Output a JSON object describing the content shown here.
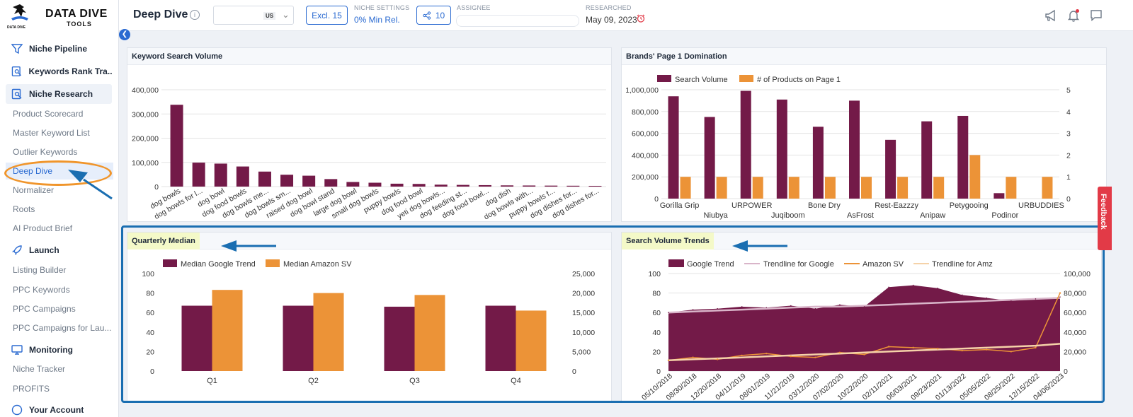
{
  "logo": {
    "brand": "DATA DIVE",
    "sub": "TOOLS",
    "tiny": "DATA DIVE"
  },
  "sidebar": {
    "groups": [
      {
        "label": "Niche Pipeline",
        "icon": "funnel-icon"
      },
      {
        "label": "Keywords Rank Tra...",
        "icon": "search-doc-icon"
      },
      {
        "label": "Niche Research",
        "icon": "search-doc-icon"
      },
      {
        "label": "Launch",
        "icon": "rocket-icon"
      },
      {
        "label": "Monitoring",
        "icon": "monitor-icon"
      },
      {
        "label": "Your Account",
        "icon": "user-icon"
      }
    ],
    "research_items": [
      "Product Scorecard",
      "Master Keyword List",
      "Outlier Keywords",
      "Deep Dive",
      "Normalizer",
      "Roots",
      "AI Product Brief"
    ],
    "launch_items": [
      "Listing Builder",
      "PPC Keywords",
      "PPC Campaigns",
      "PPC Campaigns for Lau..."
    ],
    "monitoring_items": [
      "Niche Tracker",
      "PROFITS"
    ]
  },
  "header": {
    "title": "Deep Dive",
    "marketplace": "US",
    "excl_label": "Excl. 15",
    "niche_settings_caption": "NICHE SETTINGS",
    "niche_settings_value": "0% Min Rel.",
    "share_count": "10",
    "assignee_caption": "ASSIGNEE",
    "researched_caption": "RESEARCHED",
    "researched_date": "May 09, 2023"
  },
  "feedback_label": "Feedback",
  "colors": {
    "maroon": "#731a48",
    "orange": "#ec9337",
    "blue": "#2a6ad1",
    "highlight": "#f4f9c8",
    "frame": "#1a6eb1"
  },
  "chart_data": [
    {
      "id": "keyword-search-volume",
      "type": "bar",
      "title": "Keyword Search Volume",
      "categories": [
        "dog bowls",
        "dog bowls for l...",
        "dog bowl",
        "dog food bowls",
        "dog bowls me...",
        "dog bowls sm...",
        "raised dog bowl",
        "dog bowl stand",
        "large dog bowl",
        "small dog bowls",
        "puppy bowls",
        "dog food bowl",
        "yeti dog bowls...",
        "dog feeding st...",
        "dog food bowl...",
        "dog dish",
        "dog bowls with...",
        "puppy bowls f...",
        "dog dishes for...",
        "dog dishes for..."
      ],
      "values": [
        338000,
        99000,
        95000,
        83000,
        62000,
        49000,
        45000,
        31000,
        19000,
        16000,
        12000,
        11000,
        8000,
        7000,
        6000,
        5000,
        4500,
        4000,
        3500,
        3000
      ],
      "ylim": [
        0,
        400000
      ],
      "yticks": [
        "0",
        "100,000",
        "200,000",
        "300,000",
        "400,000"
      ]
    },
    {
      "id": "brands-page1-domination",
      "type": "bar",
      "title": "Brands' Page 1 Domination",
      "categories": [
        "Gorilla Grip",
        "Niubya",
        "URPOWER",
        "Juqiboom",
        "Bone Dry",
        "AsFrost",
        "Rest-Eazzzy",
        "Anipaw",
        "Petygooing",
        "Podinor",
        "URBUDDIES"
      ],
      "series": [
        {
          "name": "Search Volume",
          "axis": "left",
          "values": [
            940000,
            750000,
            990000,
            910000,
            660000,
            900000,
            540000,
            710000,
            760000,
            50000,
            0
          ]
        },
        {
          "name": "# of Products on Page 1",
          "axis": "right",
          "values": [
            1,
            1,
            1,
            1,
            1,
            1,
            1,
            1,
            2,
            1,
            1
          ]
        }
      ],
      "ylim_left": [
        0,
        1000000
      ],
      "ylim_right": [
        0,
        5
      ],
      "yticks_left": [
        "0",
        "200,000",
        "400,000",
        "600,000",
        "800,000",
        "1,000,000"
      ],
      "yticks_right": [
        "0",
        "1",
        "2",
        "3",
        "4",
        "5"
      ]
    },
    {
      "id": "quarterly-median",
      "type": "bar",
      "title": "Quarterly Median",
      "categories": [
        "Q1",
        "Q2",
        "Q3",
        "Q4"
      ],
      "series": [
        {
          "name": "Median Google Trend",
          "axis": "left",
          "values": [
            67,
            67,
            66,
            67
          ]
        },
        {
          "name": "Median Amazon SV",
          "axis": "right",
          "values": [
            20800,
            20000,
            19500,
            15500
          ]
        }
      ],
      "ylim_left": [
        0,
        100
      ],
      "ylim_right": [
        0,
        25000
      ],
      "yticks_left": [
        "0",
        "20",
        "40",
        "60",
        "80",
        "100"
      ],
      "yticks_right": [
        "0",
        "5,000",
        "10,000",
        "15,000",
        "20,000",
        "25,000"
      ]
    },
    {
      "id": "search-volume-trends",
      "type": "area",
      "title": "Search Volume Trends",
      "x_labels": [
        "05/10/2018",
        "08/30/2018",
        "12/20/2018",
        "04/11/2019",
        "08/01/2019",
        "11/21/2019",
        "03/12/2020",
        "07/02/2020",
        "10/22/2020",
        "02/11/2021",
        "06/03/2021",
        "09/23/2021",
        "01/13/2022",
        "05/05/2022",
        "08/25/2022",
        "12/15/2022",
        "04/06/2023"
      ],
      "series": [
        {
          "name": "Google Trend",
          "axis": "left",
          "values": [
            60,
            63,
            64,
            66,
            65,
            67,
            64,
            68,
            66,
            86,
            88,
            85,
            78,
            75,
            72,
            74,
            76
          ]
        },
        {
          "name": "Trendline for Google",
          "axis": "left",
          "values": [
            60,
            61,
            62,
            63,
            64,
            65,
            66,
            66,
            67,
            68,
            69,
            70,
            71,
            72,
            73,
            74,
            75
          ]
        },
        {
          "name": "Amazon SV",
          "axis": "right",
          "values": [
            11000,
            14000,
            12000,
            16000,
            18000,
            15000,
            14000,
            19000,
            17000,
            25000,
            24000,
            23000,
            21000,
            22000,
            20000,
            24000,
            80000
          ]
        },
        {
          "name": "Trendline for Amz",
          "axis": "right",
          "values": [
            11000,
            12000,
            13000,
            14000,
            15000,
            16000,
            17000,
            18000,
            19000,
            20000,
            21000,
            22000,
            23000,
            24000,
            25000,
            26000,
            28000
          ]
        }
      ],
      "ylim_left": [
        0,
        100
      ],
      "ylim_right": [
        0,
        100000
      ],
      "yticks_left": [
        "0",
        "20",
        "40",
        "60",
        "80",
        "100"
      ],
      "yticks_right": [
        "0",
        "20,000",
        "40,000",
        "60,000",
        "80,000",
        "100,000"
      ]
    }
  ]
}
